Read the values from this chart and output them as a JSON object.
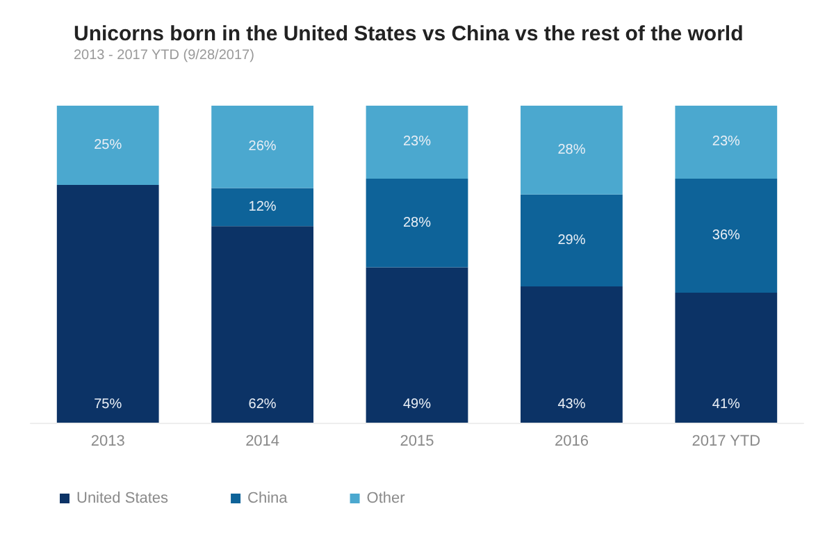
{
  "chart_data": {
    "type": "bar",
    "title": "Unicorns born in the United States vs China vs the rest of the world",
    "subtitle": "2013 - 2017 YTD (9/28/2017)",
    "categories": [
      "2013",
      "2014",
      "2015",
      "2016",
      "2017 YTD"
    ],
    "stacked": true,
    "ylim": [
      0,
      100
    ],
    "tick_labels": "x",
    "legend": "bottom left",
    "series": [
      {
        "name": "United States",
        "color": "#0c3366",
        "values": [
          75,
          62,
          49,
          43,
          41
        ],
        "value_labels": [
          "75%",
          "62%",
          "49%",
          "43%",
          "41%"
        ]
      },
      {
        "name": "China",
        "color": "#0e6399",
        "values": [
          0,
          12,
          28,
          29,
          36
        ],
        "value_labels": [
          null,
          "12%",
          "28%",
          "29%",
          "36%"
        ]
      },
      {
        "name": "Other",
        "color": "#4ba8cf",
        "values": [
          25,
          26,
          23,
          28,
          23
        ],
        "value_labels": [
          "25%",
          "26%",
          "23%",
          "28%",
          "23%"
        ]
      }
    ]
  }
}
